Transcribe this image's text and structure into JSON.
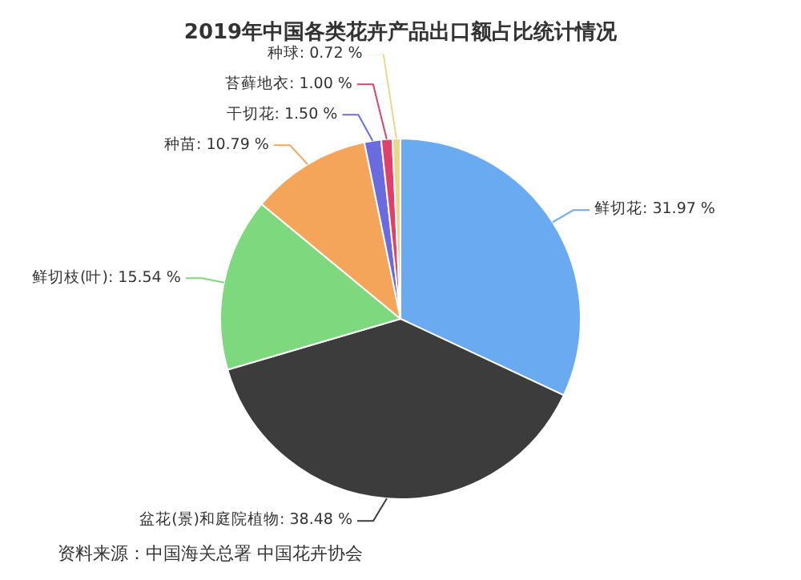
{
  "chart_data": {
    "type": "pie",
    "title": "2019年中国各类花卉产品出口额占比统计情况",
    "categories": [
      "鲜切花",
      "盆花(景)和庭院植物",
      "鲜切枝(叶)",
      "种苗",
      "干切花",
      "苔藓地衣",
      "种球"
    ],
    "values": [
      31.97,
      38.48,
      15.54,
      10.79,
      1.5,
      1.0,
      0.72
    ],
    "value_labels": [
      ": 31.97 %",
      ": 38.48 %",
      ": 15.54 %",
      ": 10.79 %",
      ": 1.50 %",
      ": 1.00 %",
      ": 0.72 %"
    ],
    "colors": [
      "#6aaaf0",
      "#3c3c3c",
      "#7ed87e",
      "#f5a55a",
      "#6b6be0",
      "#e0406a",
      "#e8d88a"
    ],
    "legend": false,
    "annotations": [
      "资料来源：中国海关总署 中国花卉协会"
    ]
  }
}
